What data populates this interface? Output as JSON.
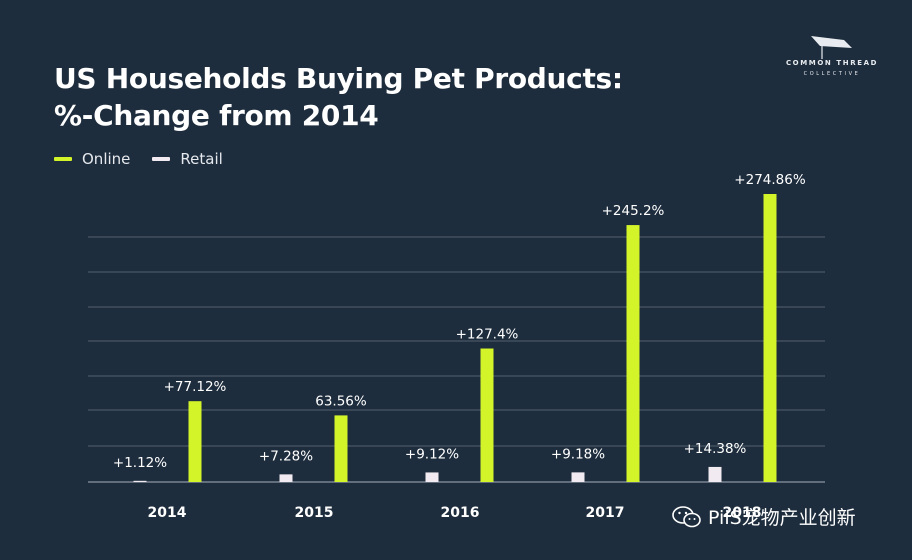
{
  "title_line1": "US Households Buying Pet Products:",
  "title_line2": "%-Change from 2014",
  "logo": {
    "name": "COMMON THREAD",
    "sub": "COLLECTIVE"
  },
  "watermark": {
    "text": "PiiS宠物产业创新",
    "icon": "wechat-icon"
  },
  "colors": {
    "background": "#1e2d3d",
    "online": "#d4f42a",
    "retail": "#f1eaf1",
    "grid": "#51606f"
  },
  "chart_data": {
    "type": "bar",
    "categories": [
      "2014",
      "2015",
      "2016",
      "2017",
      "2018"
    ],
    "series": [
      {
        "name": "Retail",
        "values": [
          1.12,
          7.28,
          9.12,
          9.18,
          14.38
        ],
        "labels": [
          "+1.12%",
          "+7.28%",
          "+9.12%",
          "+9.18%",
          "+14.38%"
        ]
      },
      {
        "name": "Online",
        "values": [
          77.12,
          63.56,
          127.4,
          245.2,
          274.86
        ],
        "labels": [
          "+77.12%",
          "63.56%",
          "+127.4%",
          "+245.2%",
          "+274.86%"
        ]
      }
    ],
    "ylim": [
      0,
      300
    ],
    "grid": true,
    "legend": "top-left",
    "xlabel": "",
    "ylabel": ""
  }
}
